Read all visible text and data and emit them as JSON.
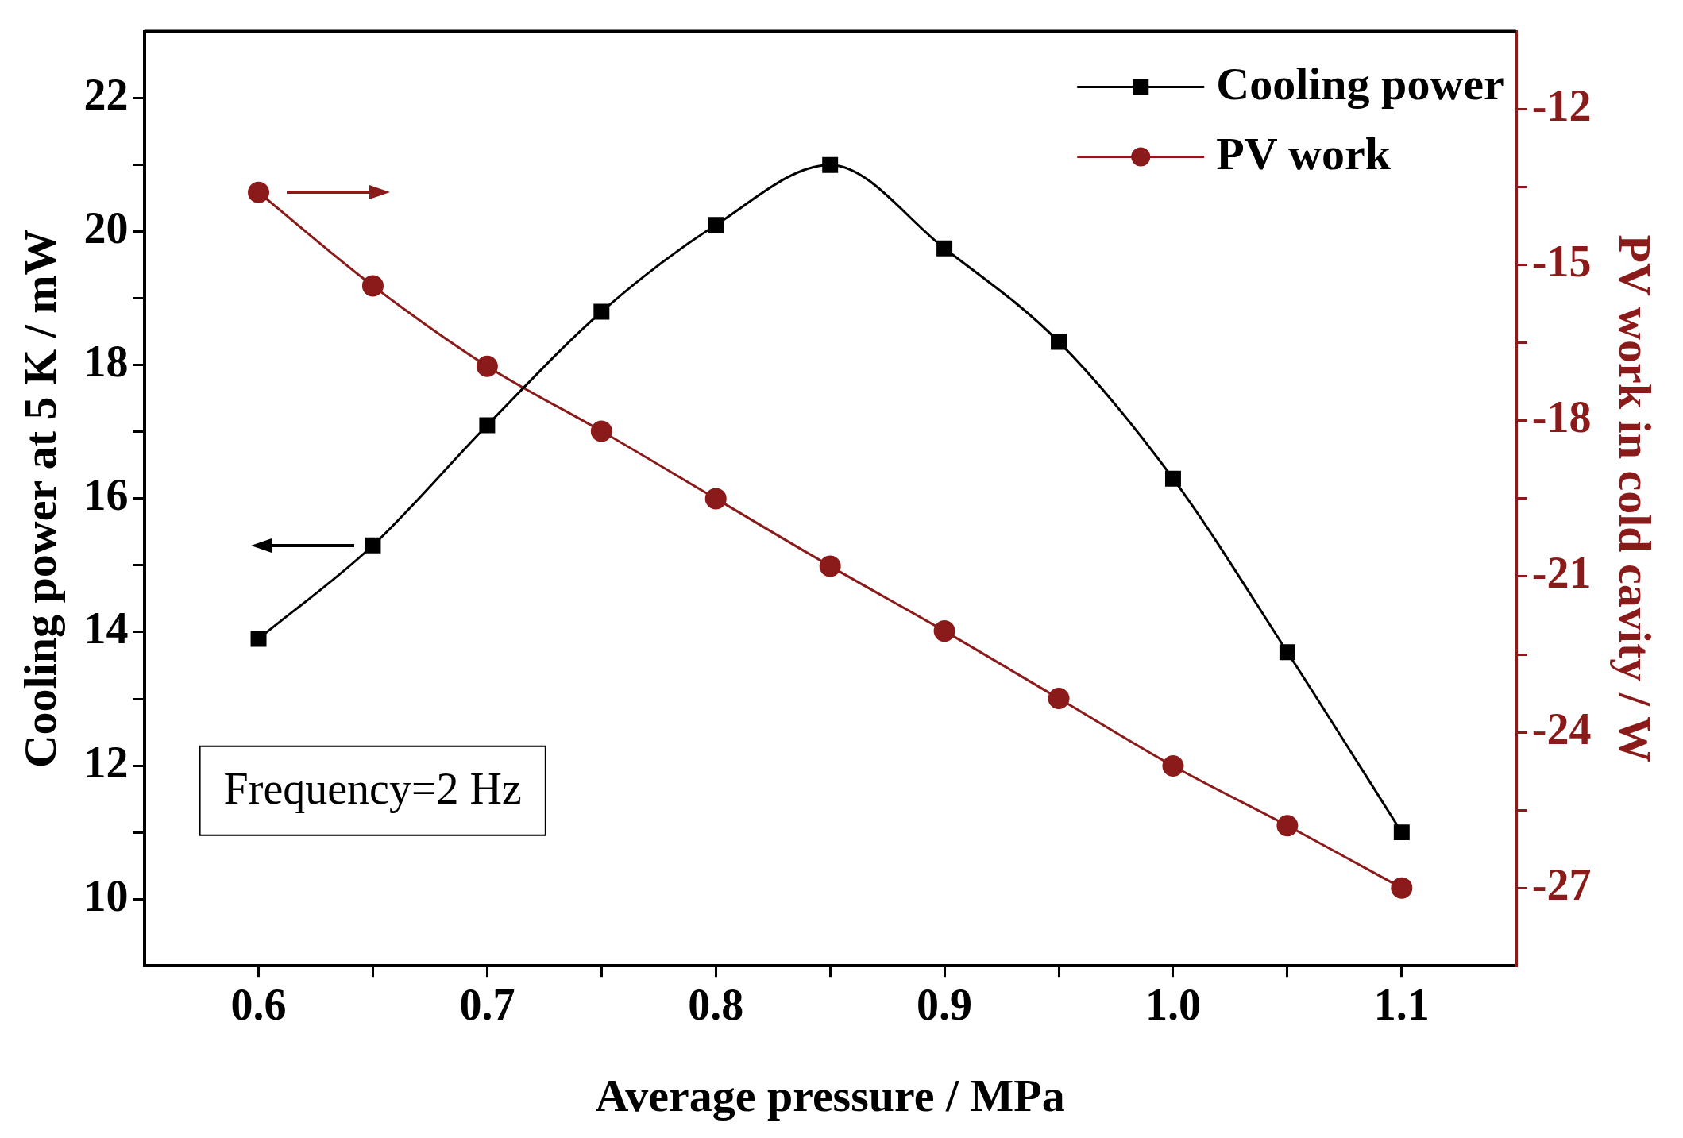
{
  "chart_data": {
    "type": "line",
    "xlabel": "Average pressure / MPa",
    "ylabel": "Cooling power at 5 K / mW",
    "y2label": "PV work in cold cavity / W",
    "x": [
      0.6,
      0.65,
      0.7,
      0.75,
      0.8,
      0.85,
      0.9,
      0.95,
      1.0,
      1.05,
      1.1
    ],
    "xlim": [
      0.55,
      1.15
    ],
    "xticks": [
      0.6,
      {
        "value": 0.65,
        "label": null
      },
      0.7,
      {
        "value": 0.75,
        "label": null
      },
      {
        "value": 0.8,
        "label": "0.8"
      },
      {
        "value": 0.85,
        "label": null
      },
      0.9,
      {
        "value": 0.95,
        "label": null
      },
      {
        "value": 1.0,
        "label": "1.0"
      },
      {
        "value": 1.05,
        "label": null
      },
      1.1
    ],
    "ylim": [
      9,
      23
    ],
    "yticks": [
      10,
      {
        "value": 11,
        "label": null
      },
      12,
      {
        "value": 13,
        "label": null
      },
      14,
      {
        "value": 15,
        "label": null
      },
      16,
      {
        "value": 17,
        "label": null
      },
      18,
      {
        "value": 19,
        "label": null
      },
      20,
      {
        "value": 21,
        "label": null
      },
      22
    ],
    "y2lim": [
      -28.5,
      -10.5
    ],
    "y2ticks": [
      -27,
      {
        "value": -25.5,
        "label": null
      },
      -24,
      {
        "value": -22.5,
        "label": null
      },
      -21,
      {
        "value": -19.5,
        "label": null
      },
      -18,
      {
        "value": -16.5,
        "label": null
      },
      -15,
      {
        "value": -13.5,
        "label": null
      },
      -12
    ],
    "series": [
      {
        "name": "Cooling power",
        "color": "#000000",
        "marker": "square",
        "values": [
          13.9,
          15.3,
          17.1,
          18.8,
          20.1,
          21.0,
          19.75,
          18.35,
          16.3,
          13.7,
          11.0
        ]
      },
      {
        "name": "PV work",
        "color": "#8b1a1a",
        "marker": "circle",
        "axis": "y2",
        "values": [
          -13.6,
          -15.4,
          -16.95,
          -18.2,
          -19.5,
          -20.8,
          -22.05,
          -23.35,
          -24.65,
          -25.8,
          -27.0
        ]
      }
    ],
    "annotations": [
      "Frequency=2 Hz"
    ],
    "grid": false,
    "legend": "top right",
    "line_style": "solid"
  }
}
